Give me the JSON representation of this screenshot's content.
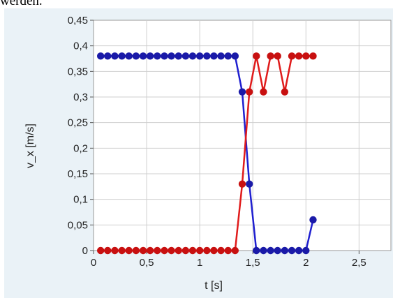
{
  "page_text": {
    "top_fragment": "werden."
  },
  "chart_data": {
    "type": "line",
    "xlabel": "t [s]",
    "ylabel": "v_x [m/s]",
    "xlim": [
      0,
      2.8
    ],
    "ylim": [
      0,
      0.45
    ],
    "x_ticks": [
      "0",
      "0,5",
      "1",
      "1,5",
      "2",
      "2,5"
    ],
    "y_ticks": [
      "0",
      "0,05",
      "0,1",
      "0,15",
      "0,2",
      "0,25",
      "0,3",
      "0,35",
      "0,4",
      "0,45"
    ],
    "grid": true,
    "legend": "none",
    "series": [
      {
        "color": "#1f1fd0",
        "marker_color": "#1a1aa8",
        "x": [
          0.067,
          0.133,
          0.2,
          0.267,
          0.333,
          0.4,
          0.467,
          0.533,
          0.6,
          0.667,
          0.733,
          0.8,
          0.867,
          0.933,
          1.0,
          1.067,
          1.133,
          1.2,
          1.267,
          1.333,
          1.4,
          1.467,
          1.533,
          1.6,
          1.667,
          1.733,
          1.8,
          1.867,
          1.933,
          2.0,
          2.067
        ],
        "values": [
          0.38,
          0.38,
          0.38,
          0.38,
          0.38,
          0.38,
          0.38,
          0.38,
          0.38,
          0.38,
          0.38,
          0.38,
          0.38,
          0.38,
          0.38,
          0.38,
          0.38,
          0.38,
          0.38,
          0.38,
          0.31,
          0.13,
          0.0,
          0.0,
          0.0,
          0.0,
          0.0,
          0.0,
          0.0,
          0.0,
          0.06
        ]
      },
      {
        "color": "#e01b1b",
        "marker_color": "#c81010",
        "x": [
          0.067,
          0.133,
          0.2,
          0.267,
          0.333,
          0.4,
          0.467,
          0.533,
          0.6,
          0.667,
          0.733,
          0.8,
          0.867,
          0.933,
          1.0,
          1.067,
          1.133,
          1.2,
          1.267,
          1.333,
          1.4,
          1.467,
          1.533,
          1.6,
          1.667,
          1.733,
          1.8,
          1.867,
          1.933,
          2.0,
          2.067
        ],
        "values": [
          0.0,
          0.0,
          0.0,
          0.0,
          0.0,
          0.0,
          0.0,
          0.0,
          0.0,
          0.0,
          0.0,
          0.0,
          0.0,
          0.0,
          0.0,
          0.0,
          0.0,
          0.0,
          0.0,
          0.0,
          0.13,
          0.31,
          0.38,
          0.31,
          0.38,
          0.38,
          0.31,
          0.38,
          0.38,
          0.38,
          0.38
        ]
      }
    ]
  }
}
